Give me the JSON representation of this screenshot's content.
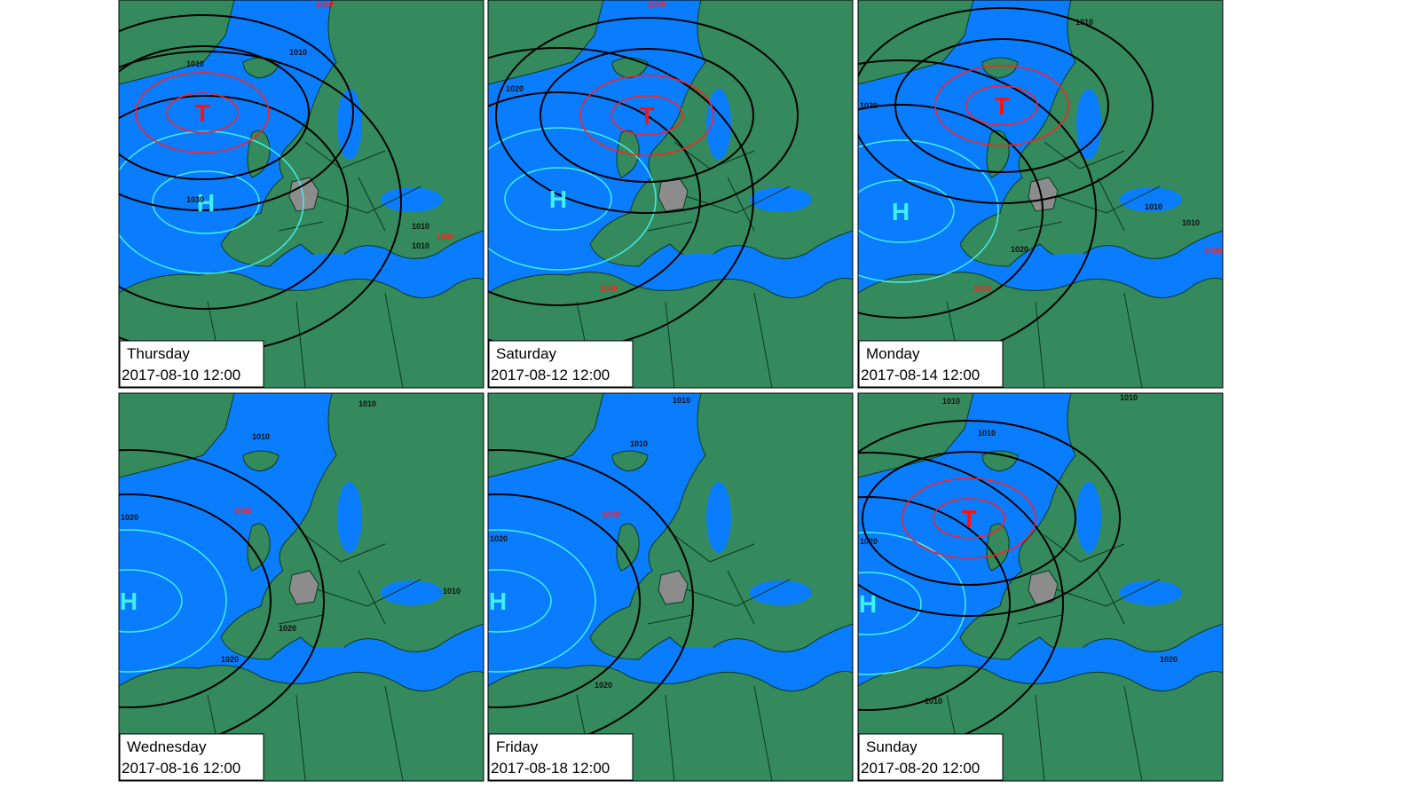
{
  "panels": [
    {
      "day": "Thursday",
      "datetime": "2017-08-10 12:00",
      "centers": [
        "H",
        "T"
      ],
      "isobar_labels": [
        "1030",
        "1010",
        "1010",
        "1000",
        "1010",
        "1010",
        "1000"
      ]
    },
    {
      "day": "Saturday",
      "datetime": "2017-08-12 12:00",
      "centers": [
        "H",
        "T"
      ],
      "isobar_labels": [
        "1000",
        "1020",
        "1000"
      ]
    },
    {
      "day": "Monday",
      "datetime": "2017-08-14 12:00",
      "centers": [
        "H",
        "T"
      ],
      "isobar_labels": [
        "1020",
        "1010",
        "1010",
        "1020",
        "1000",
        "1010",
        "1000"
      ]
    },
    {
      "day": "Wednesday",
      "datetime": "2017-08-16 12:00",
      "centers": [
        "H"
      ],
      "isobar_labels": [
        "1010",
        "1020",
        "1000",
        "1010",
        "1020",
        "1020",
        "1010"
      ]
    },
    {
      "day": "Friday",
      "datetime": "2017-08-18 12:00",
      "centers": [
        "H"
      ],
      "isobar_labels": [
        "1010",
        "1020",
        "1000",
        "1020",
        "1010"
      ]
    },
    {
      "day": "Sunday",
      "datetime": "2017-08-20 12:00",
      "centers": [
        "H",
        "T"
      ],
      "isobar_labels": [
        "1010",
        "1010",
        "1020",
        "1020",
        "1010",
        "1010"
      ]
    }
  ]
}
